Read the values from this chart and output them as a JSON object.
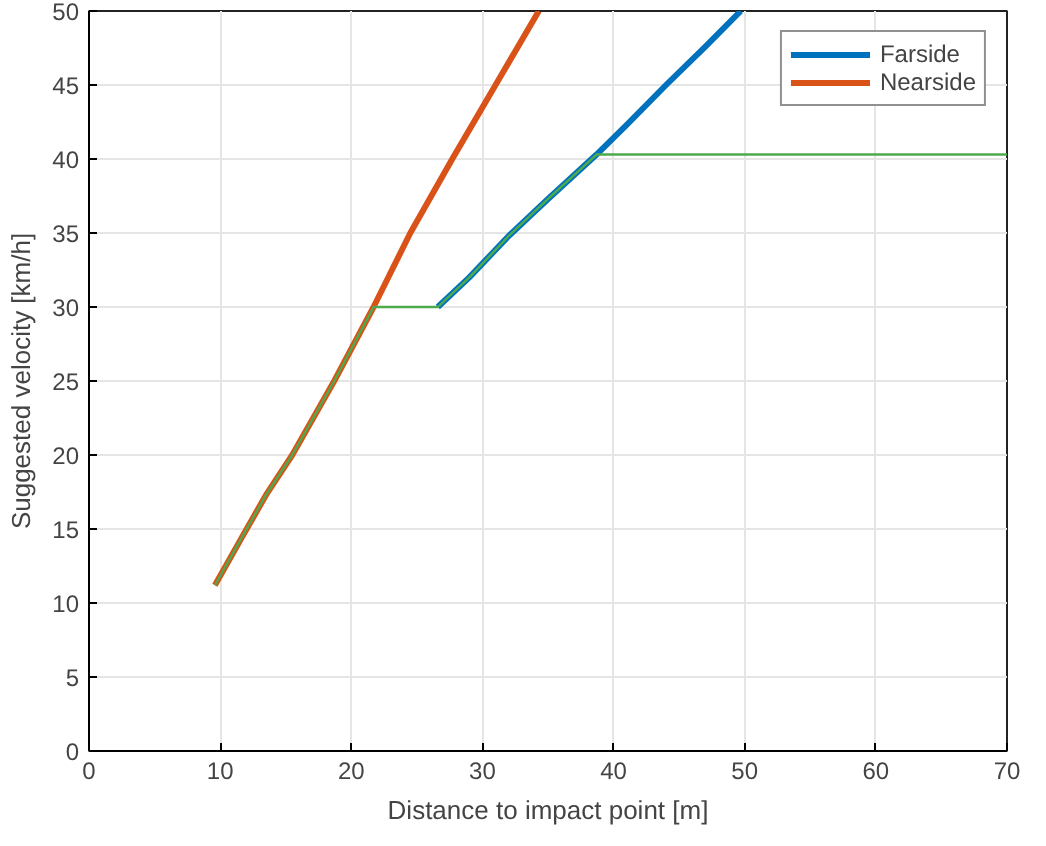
{
  "chart_data": {
    "type": "line",
    "xlabel": "Distance to impact point [m]",
    "ylabel": "Suggested velocity [km/h]",
    "xlim": [
      0,
      70
    ],
    "ylim": [
      0,
      50
    ],
    "xticks": [
      0,
      10,
      20,
      30,
      40,
      50,
      60,
      70
    ],
    "yticks": [
      0,
      5,
      10,
      15,
      20,
      25,
      30,
      35,
      40,
      45,
      50
    ],
    "grid": true,
    "legend": "top right",
    "series": [
      {
        "name": "Farside",
        "color": "#0072bd",
        "x": [
          26.6,
          29,
          32,
          35,
          38.7,
          41,
          44,
          47,
          49.7
        ],
        "values": [
          30,
          32,
          34.8,
          37.3,
          40.3,
          42.3,
          45,
          47.6,
          50
        ]
      },
      {
        "name": "Nearside",
        "color": "#d95319",
        "x": [
          9.6,
          11.7,
          13.5,
          15.5,
          18.7,
          21.7,
          24.5,
          27.7,
          31,
          34.3
        ],
        "values": [
          11.2,
          14.5,
          17.3,
          20,
          25,
          30,
          35,
          40,
          45,
          50
        ]
      },
      {
        "color": "#4dab4d",
        "x": [
          9.6,
          11.7,
          13.5,
          15.5,
          18.7,
          21.7,
          26.6,
          29,
          32,
          35,
          38.7,
          70
        ],
        "values": [
          11.2,
          14.5,
          17.3,
          20,
          25,
          30,
          30,
          32,
          34.8,
          37.3,
          40.3,
          40.3
        ]
      }
    ]
  }
}
